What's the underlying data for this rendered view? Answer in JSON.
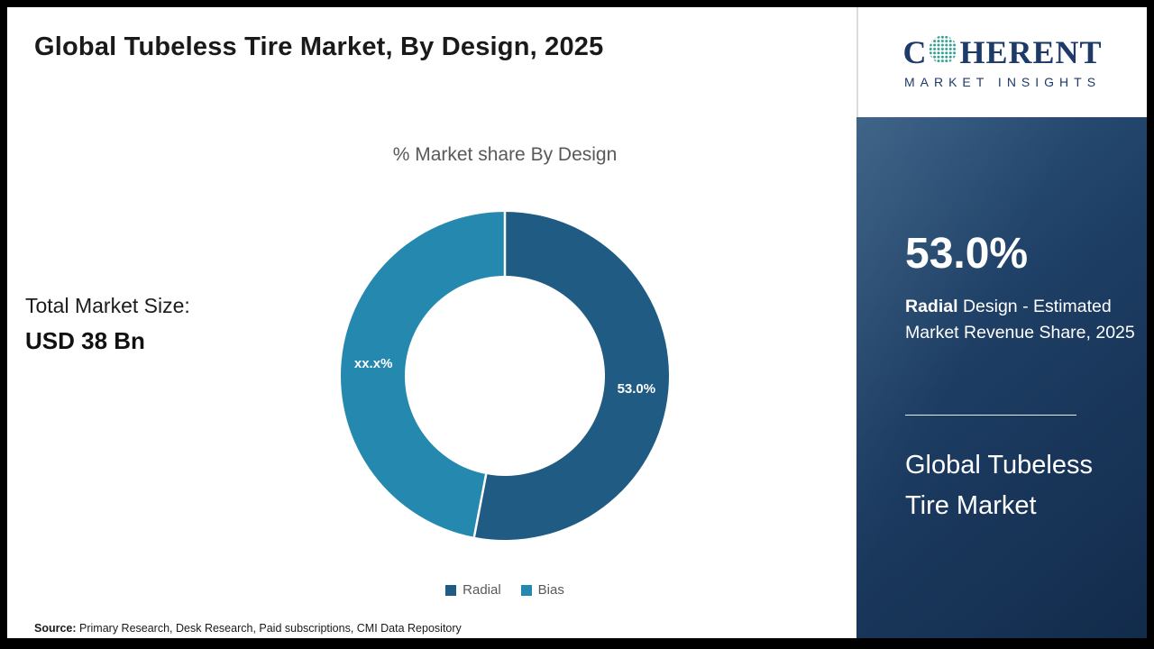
{
  "page": {
    "title": "Global Tubeless Tire Market, By Design, 2025"
  },
  "brand": {
    "word_start": "C",
    "word_end": "HERENT",
    "subtitle": "MARKET INSIGHTS",
    "navy_color": "#1e3a68",
    "globe_dot_color": "#2d9d8f"
  },
  "left_panel": {
    "total_label": "Total Market Size:",
    "total_value": "USD 38 Bn"
  },
  "chart_data": {
    "type": "pie",
    "donut": true,
    "title": "% Market share By Design",
    "series": [
      {
        "name": "Radial",
        "value": 53.0,
        "label": "53.0%",
        "color": "#1F5B83"
      },
      {
        "name": "Bias",
        "value": 47.0,
        "label": "xx.x%",
        "color": "#2588AE"
      }
    ],
    "start_angle_deg": 0,
    "direction": "clockwise",
    "inner_radius_ratio": 0.61,
    "legend_position": "bottom"
  },
  "right_panel": {
    "stat_value": "53.0%",
    "stat_desc_bold": "Radial",
    "stat_desc_rest": " Design - Estimated Market Revenue Share, 2025",
    "footer_title": "Global Tubeless Tire Market",
    "panel_gradient": [
      "#30587f",
      "#122b4b"
    ]
  },
  "source": {
    "prefix": "Source:",
    "text": " Primary Research, Desk Research, Paid subscriptions, CMI Data Repository"
  }
}
